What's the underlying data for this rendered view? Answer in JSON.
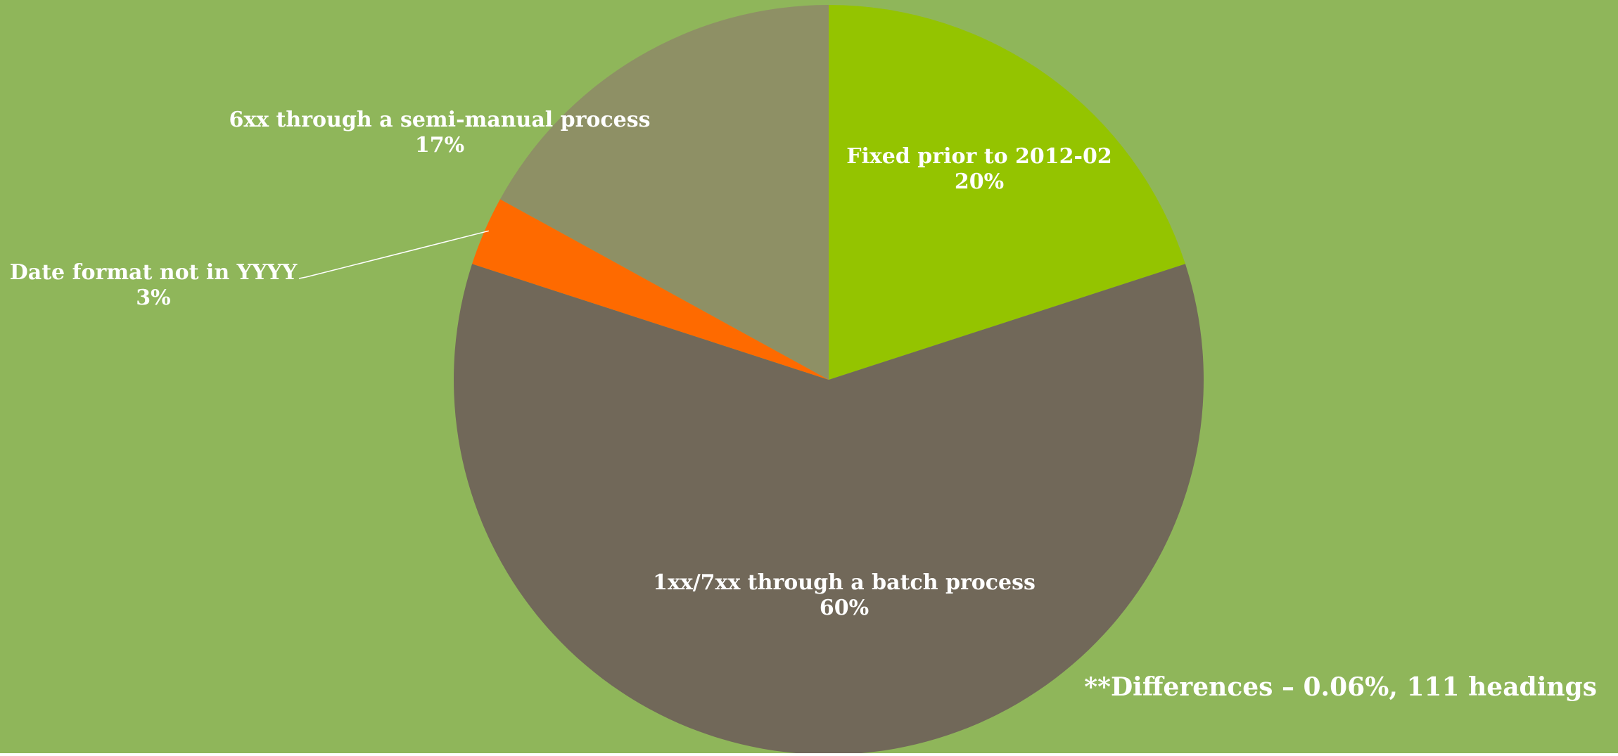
{
  "background_color": "#8fb65a",
  "chart_data": {
    "type": "pie",
    "title": "",
    "start": "12 o'clock",
    "direction": "clockwise",
    "slices": [
      {
        "label": "Fixed prior to 2012-02",
        "value": 20,
        "value_label": "20%",
        "color": "#94c400",
        "label_placement": "inside"
      },
      {
        "label": "1xx/7xx  through a batch process",
        "value": 60,
        "value_label": "60%",
        "color": "#716859",
        "label_placement": "inside"
      },
      {
        "label": "Date format not in YYYY",
        "value": 3,
        "value_label": "3%",
        "color": "#fe6a00",
        "label_placement": "outside-left"
      },
      {
        "label": "6xx through a semi-manual process",
        "value": 17,
        "value_label": "17%",
        "color": "#8e9065",
        "label_placement": "outside-top-left"
      }
    ],
    "annotation": "**Differences – 0.06%, 111  headings"
  }
}
